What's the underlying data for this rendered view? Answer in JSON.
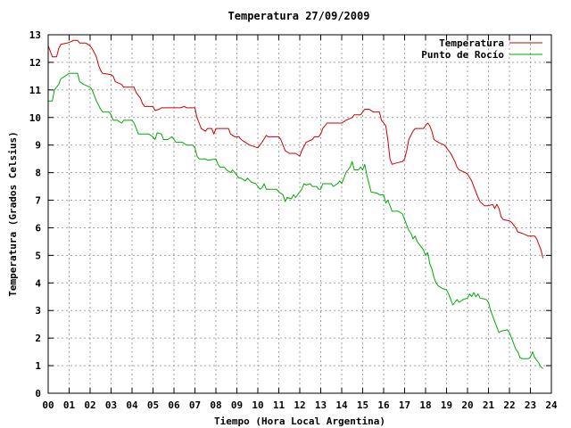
{
  "chart_data": {
    "type": "line",
    "title": "Temperatura 27/09/2009",
    "xlabel": "Tiempo (Hora Local Argentina)",
    "ylabel": "Temperatura (Grados Celsius)",
    "xlim": [
      0,
      24
    ],
    "ylim": [
      0,
      13
    ],
    "x_ticks": [
      "00",
      "01",
      "02",
      "03",
      "04",
      "05",
      "06",
      "07",
      "08",
      "09",
      "10",
      "11",
      "12",
      "13",
      "14",
      "15",
      "16",
      "17",
      "18",
      "19",
      "20",
      "21",
      "22",
      "23",
      "24"
    ],
    "y_ticks": [
      "0",
      "1",
      "2",
      "3",
      "4",
      "5",
      "6",
      "7",
      "8",
      "9",
      "10",
      "11",
      "12",
      "13"
    ],
    "grid": true,
    "legend_position": "top-right",
    "series": [
      {
        "name": "Temperatura",
        "color": "#cc0000",
        "points": [
          [
            0.0,
            12.6
          ],
          [
            0.1,
            12.4
          ],
          [
            0.2,
            12.2
          ],
          [
            0.4,
            12.2
          ],
          [
            0.5,
            12.5
          ],
          [
            0.6,
            12.65
          ],
          [
            0.9,
            12.7
          ],
          [
            1.1,
            12.75
          ],
          [
            1.2,
            12.8
          ],
          [
            1.4,
            12.8
          ],
          [
            1.5,
            12.7
          ],
          [
            1.8,
            12.7
          ],
          [
            2.0,
            12.6
          ],
          [
            2.1,
            12.5
          ],
          [
            2.3,
            12.2
          ],
          [
            2.4,
            11.9
          ],
          [
            2.5,
            11.7
          ],
          [
            2.6,
            11.6
          ],
          [
            3.0,
            11.55
          ],
          [
            3.1,
            11.5
          ],
          [
            3.2,
            11.3
          ],
          [
            3.5,
            11.2
          ],
          [
            3.6,
            11.1
          ],
          [
            4.0,
            11.1
          ],
          [
            4.1,
            11.1
          ],
          [
            4.2,
            10.9
          ],
          [
            4.4,
            10.7
          ],
          [
            4.5,
            10.5
          ],
          [
            4.6,
            10.4
          ],
          [
            5.0,
            10.4
          ],
          [
            5.1,
            10.25
          ],
          [
            5.3,
            10.3
          ],
          [
            5.4,
            10.35
          ],
          [
            6.0,
            10.35
          ],
          [
            6.3,
            10.35
          ],
          [
            6.5,
            10.4
          ],
          [
            6.6,
            10.35
          ],
          [
            7.0,
            10.35
          ],
          [
            7.1,
            10.0
          ],
          [
            7.2,
            9.8
          ],
          [
            7.3,
            9.6
          ],
          [
            7.5,
            9.5
          ],
          [
            7.6,
            9.6
          ],
          [
            7.8,
            9.6
          ],
          [
            7.9,
            9.4
          ],
          [
            8.0,
            9.6
          ],
          [
            8.3,
            9.6
          ],
          [
            8.5,
            9.6
          ],
          [
            8.6,
            9.6
          ],
          [
            8.7,
            9.4
          ],
          [
            8.9,
            9.3
          ],
          [
            9.1,
            9.3
          ],
          [
            9.2,
            9.2
          ],
          [
            9.4,
            9.1
          ],
          [
            9.6,
            9.0
          ],
          [
            9.8,
            8.95
          ],
          [
            10.0,
            8.9
          ],
          [
            10.1,
            9.0
          ],
          [
            10.2,
            9.1
          ],
          [
            10.4,
            9.35
          ],
          [
            10.5,
            9.3
          ],
          [
            10.9,
            9.3
          ],
          [
            11.0,
            9.3
          ],
          [
            11.1,
            9.2
          ],
          [
            11.3,
            8.8
          ],
          [
            11.5,
            8.7
          ],
          [
            11.8,
            8.7
          ],
          [
            11.9,
            8.65
          ],
          [
            12.0,
            8.6
          ],
          [
            12.1,
            8.8
          ],
          [
            12.3,
            9.1
          ],
          [
            12.6,
            9.2
          ],
          [
            12.7,
            9.3
          ],
          [
            12.9,
            9.3
          ],
          [
            13.0,
            9.4
          ],
          [
            13.1,
            9.6
          ],
          [
            13.3,
            9.8
          ],
          [
            13.9,
            9.8
          ],
          [
            14.0,
            9.8
          ],
          [
            14.2,
            9.9
          ],
          [
            14.5,
            10.0
          ],
          [
            14.6,
            10.1
          ],
          [
            14.9,
            10.1
          ],
          [
            15.0,
            10.2
          ],
          [
            15.1,
            10.3
          ],
          [
            15.3,
            10.3
          ],
          [
            15.5,
            10.2
          ],
          [
            15.8,
            10.2
          ],
          [
            15.9,
            9.9
          ],
          [
            16.1,
            9.7
          ],
          [
            16.2,
            9.2
          ],
          [
            16.3,
            8.5
          ],
          [
            16.4,
            8.3
          ],
          [
            16.6,
            8.35
          ],
          [
            16.9,
            8.4
          ],
          [
            17.0,
            8.5
          ],
          [
            17.1,
            8.8
          ],
          [
            17.2,
            9.2
          ],
          [
            17.4,
            9.5
          ],
          [
            17.5,
            9.6
          ],
          [
            17.6,
            9.6
          ],
          [
            17.9,
            9.6
          ],
          [
            18.0,
            9.7
          ],
          [
            18.1,
            9.8
          ],
          [
            18.2,
            9.7
          ],
          [
            18.3,
            9.5
          ],
          [
            18.4,
            9.2
          ],
          [
            18.6,
            9.1
          ],
          [
            18.9,
            9.0
          ],
          [
            19.0,
            8.9
          ],
          [
            19.2,
            8.7
          ],
          [
            19.4,
            8.4
          ],
          [
            19.5,
            8.2
          ],
          [
            19.6,
            8.1
          ],
          [
            19.9,
            8.0
          ],
          [
            20.0,
            7.95
          ],
          [
            20.2,
            7.7
          ],
          [
            20.3,
            7.5
          ],
          [
            20.4,
            7.3
          ],
          [
            20.5,
            7.1
          ],
          [
            20.6,
            6.95
          ],
          [
            20.8,
            6.8
          ],
          [
            21.0,
            6.8
          ],
          [
            21.2,
            6.85
          ],
          [
            21.3,
            6.7
          ],
          [
            21.4,
            6.85
          ],
          [
            21.5,
            6.7
          ],
          [
            21.6,
            6.4
          ],
          [
            21.7,
            6.3
          ],
          [
            22.0,
            6.25
          ],
          [
            22.1,
            6.2
          ],
          [
            22.2,
            6.1
          ],
          [
            22.3,
            6.0
          ],
          [
            22.4,
            5.85
          ],
          [
            22.6,
            5.8
          ],
          [
            22.9,
            5.7
          ],
          [
            23.2,
            5.7
          ],
          [
            23.3,
            5.6
          ],
          [
            23.4,
            5.4
          ],
          [
            23.5,
            5.2
          ],
          [
            23.6,
            4.9
          ]
        ]
      },
      {
        "name": "Punto de Rocío",
        "color": "#00aa00",
        "points": [
          [
            0.0,
            10.6
          ],
          [
            0.2,
            10.6
          ],
          [
            0.3,
            11.0
          ],
          [
            0.5,
            11.2
          ],
          [
            0.6,
            11.4
          ],
          [
            0.8,
            11.5
          ],
          [
            1.0,
            11.6
          ],
          [
            1.4,
            11.6
          ],
          [
            1.5,
            11.3
          ],
          [
            1.7,
            11.2
          ],
          [
            2.0,
            11.1
          ],
          [
            2.1,
            11.0
          ],
          [
            2.3,
            10.6
          ],
          [
            2.5,
            10.3
          ],
          [
            2.6,
            10.2
          ],
          [
            2.9,
            10.2
          ],
          [
            3.0,
            10.1
          ],
          [
            3.1,
            9.9
          ],
          [
            3.3,
            9.9
          ],
          [
            3.5,
            9.8
          ],
          [
            3.6,
            9.9
          ],
          [
            4.0,
            9.9
          ],
          [
            4.1,
            9.8
          ],
          [
            4.2,
            9.6
          ],
          [
            4.3,
            9.4
          ],
          [
            4.7,
            9.4
          ],
          [
            4.8,
            9.4
          ],
          [
            5.0,
            9.3
          ],
          [
            5.1,
            9.2
          ],
          [
            5.2,
            9.45
          ],
          [
            5.4,
            9.4
          ],
          [
            5.5,
            9.2
          ],
          [
            5.7,
            9.2
          ],
          [
            5.9,
            9.3
          ],
          [
            6.0,
            9.2
          ],
          [
            6.1,
            9.1
          ],
          [
            6.4,
            9.1
          ],
          [
            6.6,
            9.0
          ],
          [
            6.9,
            9.0
          ],
          [
            7.0,
            8.9
          ],
          [
            7.1,
            8.6
          ],
          [
            7.2,
            8.5
          ],
          [
            7.5,
            8.5
          ],
          [
            7.6,
            8.45
          ],
          [
            8.0,
            8.5
          ],
          [
            8.1,
            8.3
          ],
          [
            8.2,
            8.2
          ],
          [
            8.4,
            8.2
          ],
          [
            8.5,
            8.1
          ],
          [
            8.7,
            8.0
          ],
          [
            8.8,
            8.1
          ],
          [
            9.0,
            7.9
          ],
          [
            9.1,
            7.8
          ],
          [
            9.2,
            7.8
          ],
          [
            9.4,
            7.7
          ],
          [
            9.5,
            7.8
          ],
          [
            9.7,
            7.65
          ],
          [
            9.9,
            7.6
          ],
          [
            10.0,
            7.5
          ],
          [
            10.1,
            7.4
          ],
          [
            10.2,
            7.45
          ],
          [
            10.3,
            7.6
          ],
          [
            10.4,
            7.4
          ],
          [
            10.8,
            7.4
          ],
          [
            10.9,
            7.4
          ],
          [
            11.0,
            7.3
          ],
          [
            11.2,
            7.2
          ],
          [
            11.3,
            6.95
          ],
          [
            11.4,
            7.1
          ],
          [
            11.6,
            7.05
          ],
          [
            11.7,
            7.2
          ],
          [
            11.8,
            7.1
          ],
          [
            12.0,
            7.3
          ],
          [
            12.1,
            7.4
          ],
          [
            12.2,
            7.6
          ],
          [
            12.3,
            7.55
          ],
          [
            12.5,
            7.6
          ],
          [
            12.6,
            7.5
          ],
          [
            12.8,
            7.5
          ],
          [
            12.9,
            7.4
          ],
          [
            13.0,
            7.4
          ],
          [
            13.1,
            7.6
          ],
          [
            13.3,
            7.6
          ],
          [
            13.5,
            7.6
          ],
          [
            13.6,
            7.5
          ],
          [
            13.8,
            7.6
          ],
          [
            13.9,
            7.7
          ],
          [
            14.0,
            7.6
          ],
          [
            14.1,
            7.8
          ],
          [
            14.2,
            8.0
          ],
          [
            14.3,
            8.1
          ],
          [
            14.4,
            8.2
          ],
          [
            14.5,
            8.4
          ],
          [
            14.6,
            8.1
          ],
          [
            14.8,
            8.1
          ],
          [
            14.9,
            8.2
          ],
          [
            15.0,
            8.1
          ],
          [
            15.1,
            8.3
          ],
          [
            15.2,
            7.9
          ],
          [
            15.3,
            7.6
          ],
          [
            15.4,
            7.3
          ],
          [
            15.7,
            7.25
          ],
          [
            15.8,
            7.2
          ],
          [
            16.0,
            7.2
          ],
          [
            16.1,
            6.9
          ],
          [
            16.2,
            7.0
          ],
          [
            16.3,
            6.8
          ],
          [
            16.4,
            6.6
          ],
          [
            16.7,
            6.6
          ],
          [
            16.9,
            6.5
          ],
          [
            17.0,
            6.3
          ],
          [
            17.1,
            6.1
          ],
          [
            17.2,
            5.9
          ],
          [
            17.3,
            5.8
          ],
          [
            17.4,
            5.6
          ],
          [
            17.5,
            5.7
          ],
          [
            17.6,
            5.5
          ],
          [
            17.8,
            5.3
          ],
          [
            17.9,
            5.2
          ],
          [
            18.0,
            5.0
          ],
          [
            18.1,
            5.1
          ],
          [
            18.2,
            4.7
          ],
          [
            18.3,
            4.5
          ],
          [
            18.4,
            4.2
          ],
          [
            18.5,
            4.0
          ],
          [
            18.6,
            3.9
          ],
          [
            18.8,
            3.8
          ],
          [
            19.0,
            3.75
          ],
          [
            19.1,
            3.6
          ],
          [
            19.2,
            3.4
          ],
          [
            19.3,
            3.2
          ],
          [
            19.4,
            3.3
          ],
          [
            19.5,
            3.4
          ],
          [
            19.6,
            3.3
          ],
          [
            19.8,
            3.4
          ],
          [
            20.0,
            3.45
          ],
          [
            20.1,
            3.6
          ],
          [
            20.2,
            3.5
          ],
          [
            20.3,
            3.65
          ],
          [
            20.4,
            3.5
          ],
          [
            20.5,
            3.6
          ],
          [
            20.6,
            3.45
          ],
          [
            20.9,
            3.4
          ],
          [
            21.0,
            3.3
          ],
          [
            21.1,
            3.0
          ],
          [
            21.2,
            2.8
          ],
          [
            21.3,
            2.6
          ],
          [
            21.4,
            2.4
          ],
          [
            21.5,
            2.2
          ],
          [
            21.6,
            2.25
          ],
          [
            21.9,
            2.3
          ],
          [
            22.0,
            2.2
          ],
          [
            22.1,
            2.0
          ],
          [
            22.2,
            1.8
          ],
          [
            22.3,
            1.6
          ],
          [
            22.4,
            1.5
          ],
          [
            22.5,
            1.3
          ],
          [
            22.6,
            1.25
          ],
          [
            22.9,
            1.25
          ],
          [
            23.0,
            1.3
          ],
          [
            23.1,
            1.5
          ],
          [
            23.2,
            1.3
          ],
          [
            23.3,
            1.2
          ],
          [
            23.4,
            1.1
          ],
          [
            23.5,
            0.95
          ],
          [
            23.6,
            0.9
          ]
        ]
      }
    ]
  }
}
